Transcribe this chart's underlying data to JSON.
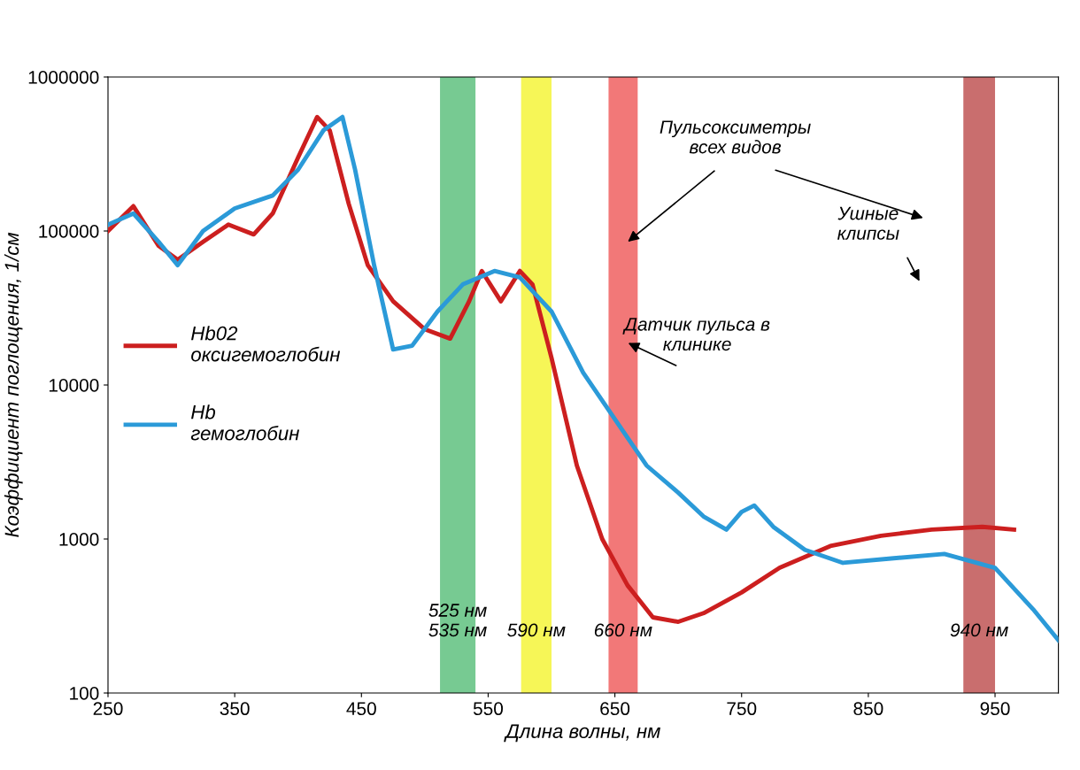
{
  "chart_data": {
    "type": "line",
    "xlabel": "Длина волны, нм",
    "ylabel": "Коэффициент поглощения, 1/см",
    "log": "y",
    "xlim": [
      250,
      1000
    ],
    "xticks": [
      250,
      350,
      450,
      550,
      650,
      750,
      850,
      950
    ],
    "ylim": [
      100,
      1000000
    ],
    "yticks": [
      100,
      1000,
      10000,
      100000,
      1000000
    ],
    "grid": false,
    "legend": "left",
    "marker": "none",
    "line_style": "solid",
    "series": [
      {
        "name": "Hb02\nоксигемоглобин",
        "color": "#cc1f1f",
        "x": [
          250,
          270,
          290,
          305,
          325,
          345,
          365,
          380,
          400,
          415,
          425,
          440,
          455,
          475,
          500,
          520,
          535,
          545,
          560,
          575,
          585,
          600,
          620,
          640,
          660,
          680,
          700,
          720,
          750,
          780,
          820,
          860,
          900,
          940,
          965
        ],
        "values": [
          100000,
          145000,
          80000,
          65000,
          85000,
          110000,
          95000,
          130000,
          300000,
          550000,
          450000,
          150000,
          60000,
          35000,
          23000,
          20000,
          35000,
          55000,
          35000,
          55000,
          45000,
          15000,
          3000,
          1000,
          500,
          310,
          290,
          330,
          450,
          650,
          900,
          1050,
          1150,
          1200,
          1150
        ]
      },
      {
        "name": "Hb\nгемоглобин",
        "color": "#2b9ad8",
        "x": [
          250,
          270,
          290,
          305,
          325,
          350,
          380,
          400,
          420,
          435,
          445,
          460,
          475,
          490,
          510,
          530,
          555,
          575,
          600,
          625,
          650,
          675,
          700,
          720,
          738,
          750,
          760,
          775,
          800,
          830,
          870,
          910,
          950,
          980,
          1000
        ],
        "values": [
          110000,
          130000,
          85000,
          60000,
          100000,
          140000,
          170000,
          250000,
          450000,
          550000,
          250000,
          60000,
          17000,
          18000,
          30000,
          45000,
          55000,
          50000,
          30000,
          12000,
          6000,
          3000,
          2000,
          1400,
          1150,
          1500,
          1650,
          1200,
          850,
          700,
          750,
          800,
          650,
          350,
          220
        ]
      }
    ],
    "bands": [
      {
        "axis": "x",
        "from": 512,
        "to": 540,
        "label": "525 нм\n535 нм",
        "color": "#5fc17f"
      },
      {
        "axis": "x",
        "from": 576,
        "to": 600,
        "label": "590 нм",
        "color": "#f5f53a"
      },
      {
        "axis": "x",
        "from": 645,
        "to": 668,
        "label": "660 нм",
        "color": "#f06060"
      },
      {
        "axis": "x",
        "from": 925,
        "to": 950,
        "label": "940 нм",
        "color": "#c05555"
      }
    ],
    "annotations": [
      "Пульсоксиметры\nвсех видов",
      "Ушные\nклипсы",
      "Датчик пульса в\nклинике"
    ]
  }
}
